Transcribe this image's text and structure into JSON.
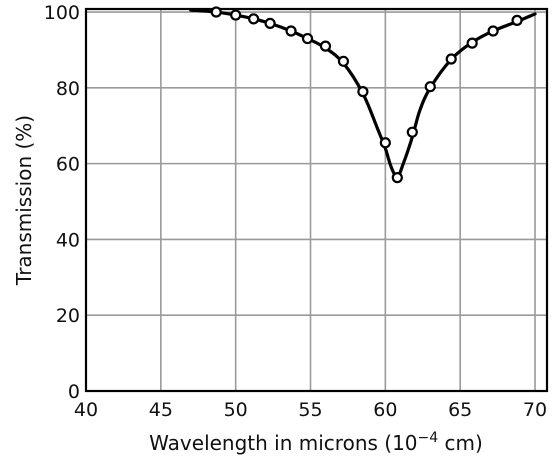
{
  "chart_data": {
    "type": "line",
    "title": "",
    "xlabel": "Wavelength in microns (10",
    "xlabel_exp": "−4",
    "xlabel_unit": " cm)",
    "ylabel": "Transmission (%)",
    "xlim": [
      40,
      70.8
    ],
    "ylim": [
      0,
      100.8
    ],
    "grid": true,
    "x_ticks": [
      "40",
      "45",
      "50",
      "55",
      "60",
      "65",
      "70"
    ],
    "y_ticks": [
      "0",
      "20",
      "40",
      "60",
      "80",
      "100"
    ],
    "curve": {
      "x": [
        47.0,
        48.7,
        50.0,
        51.2,
        52.3,
        53.7,
        54.8,
        56.0,
        57.2,
        58.5,
        59.5,
        60.0,
        60.4,
        60.8,
        61.2,
        61.8,
        62.3,
        63.0,
        64.4,
        65.8,
        67.2,
        68.8,
        70.0
      ],
      "y": [
        100.5,
        100.0,
        99.2,
        98.2,
        97.0,
        95.0,
        93.0,
        90.5,
        86.5,
        78.5,
        69.0,
        64.0,
        59.0,
        56.5,
        60.0,
        67.0,
        74.0,
        80.0,
        87.5,
        92.0,
        95.0,
        97.5,
        99.5
      ]
    },
    "series": [
      {
        "x": [
          48.7,
          50.0,
          51.2,
          52.3,
          53.7,
          54.8,
          56.0,
          57.2,
          58.5,
          60.0,
          60.8,
          61.8,
          63.0,
          64.4,
          65.8,
          67.2,
          68.8
        ],
        "y": [
          100.0,
          99.2,
          98.2,
          97.0,
          95.0,
          93.0,
          91.0,
          87.0,
          79.0,
          65.5,
          56.3,
          68.3,
          80.3,
          87.6,
          91.8,
          95.0,
          97.8
        ]
      }
    ]
  }
}
